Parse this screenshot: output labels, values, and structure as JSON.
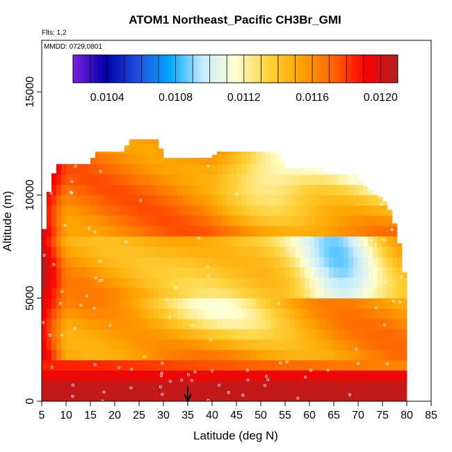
{
  "chart_data": {
    "type": "heatmap",
    "title": "ATOM1 Northeast_Pacific CH3Br_GMI",
    "flights_label": "Flts: 1,2",
    "dates_label": "MMDD: 0729,0801",
    "xlabel": "Latitude (deg N)",
    "ylabel": "Altitude (m)",
    "xlim": [
      5,
      85
    ],
    "ylim": [
      0,
      17500
    ],
    "x_ticks": [
      "5",
      "10",
      "15",
      "20",
      "25",
      "30",
      "35",
      "40",
      "45",
      "50",
      "55",
      "60",
      "65",
      "70",
      "75",
      "80",
      "85"
    ],
    "y_ticks": [
      "0",
      "5000",
      "10000",
      "15000"
    ],
    "colorbar": {
      "min": 0.0102,
      "max": 0.0121,
      "tick_labels": [
        "0.0104",
        "0.0108",
        "0.0112",
        "0.0116",
        "0.0120"
      ],
      "tick_values": [
        0.0104,
        0.0108,
        0.0112,
        0.0116,
        0.012
      ],
      "colors": [
        "#7b1fe0",
        "#0000a8",
        "#1f4fe0",
        "#00aaff",
        "#c7ecff",
        "#ffffd0",
        "#ffd23a",
        "#ffa500",
        "#ff6600",
        "#ff0000",
        "#b02020"
      ]
    },
    "arrow_marker_latitude": 35,
    "altitude_bin_m": 500,
    "latitude_bin_deg": 1,
    "grid": false
  }
}
